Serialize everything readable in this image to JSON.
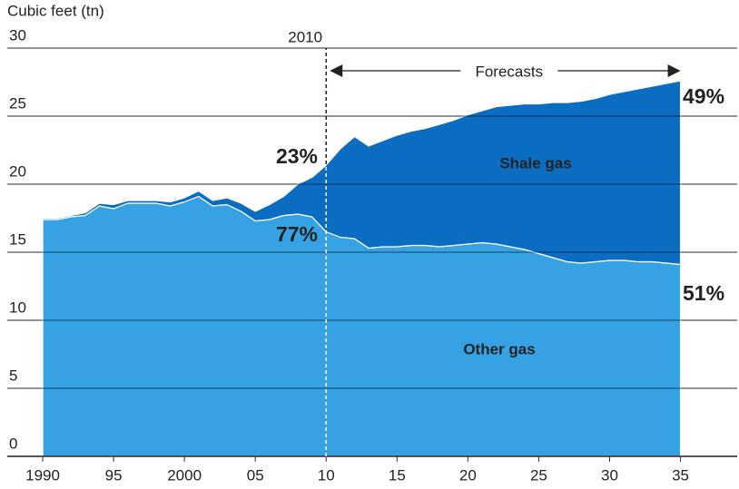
{
  "chart_data": {
    "type": "stacked_area",
    "y_label": "Cubic feet (tn)",
    "x": [
      1990,
      1991,
      1992,
      1993,
      1994,
      1995,
      1996,
      1997,
      1998,
      1999,
      2000,
      2001,
      2002,
      2003,
      2004,
      2005,
      2006,
      2007,
      2008,
      2009,
      2010,
      2011,
      2012,
      2013,
      2014,
      2015,
      2016,
      2017,
      2018,
      2019,
      2020,
      2021,
      2022,
      2023,
      2024,
      2025,
      2026,
      2027,
      2028,
      2029,
      2030,
      2031,
      2032,
      2033,
      2034,
      2035
    ],
    "series": [
      {
        "name": "Other gas",
        "color": "#36a2e3",
        "values": [
          17.4,
          17.4,
          17.6,
          17.7,
          18.4,
          18.2,
          18.6,
          18.6,
          18.6,
          18.4,
          18.7,
          19.1,
          18.4,
          18.5,
          18.0,
          17.3,
          17.4,
          17.7,
          17.8,
          17.6,
          16.5,
          16.1,
          16.0,
          15.3,
          15.4,
          15.4,
          15.5,
          15.5,
          15.4,
          15.5,
          15.6,
          15.7,
          15.6,
          15.4,
          15.2,
          14.9,
          14.6,
          14.3,
          14.2,
          14.3,
          14.4,
          14.4,
          14.3,
          14.3,
          14.2,
          14.1
        ]
      },
      {
        "name": "Shale gas",
        "color": "#0b6dc2",
        "values": [
          0.1,
          0.1,
          0.1,
          0.2,
          0.2,
          0.3,
          0.2,
          0.2,
          0.2,
          0.3,
          0.3,
          0.4,
          0.4,
          0.5,
          0.6,
          0.7,
          1.1,
          1.4,
          2.2,
          2.9,
          4.9,
          6.5,
          7.5,
          7.5,
          7.8,
          8.2,
          8.4,
          8.6,
          9.0,
          9.2,
          9.5,
          9.7,
          10.1,
          10.4,
          10.7,
          11.0,
          11.4,
          11.7,
          11.9,
          12.0,
          12.2,
          12.4,
          12.7,
          12.9,
          13.2,
          13.5
        ]
      }
    ],
    "annotations": [
      "23%",
      "77%",
      "49%",
      "51%"
    ],
    "vline": {
      "x": 2010,
      "label": "2010"
    },
    "forecast_label": "Forecasts",
    "xlim": [
      1987.5,
      2039
    ],
    "xticks": [
      1990,
      {
        "value": 1995,
        "label": "95"
      },
      2000,
      {
        "value": 2005,
        "label": "05"
      },
      {
        "value": 2010,
        "label": "10"
      },
      {
        "value": 2015,
        "label": "15"
      },
      {
        "value": 2020,
        "label": "20"
      },
      {
        "value": 2025,
        "label": "25"
      },
      {
        "value": 2030,
        "label": "30"
      },
      {
        "value": 2035,
        "label": "35"
      }
    ],
    "ylim": [
      0,
      30
    ],
    "yticks": [
      0,
      5,
      10,
      15,
      20,
      25,
      30
    ],
    "grid": true
  }
}
